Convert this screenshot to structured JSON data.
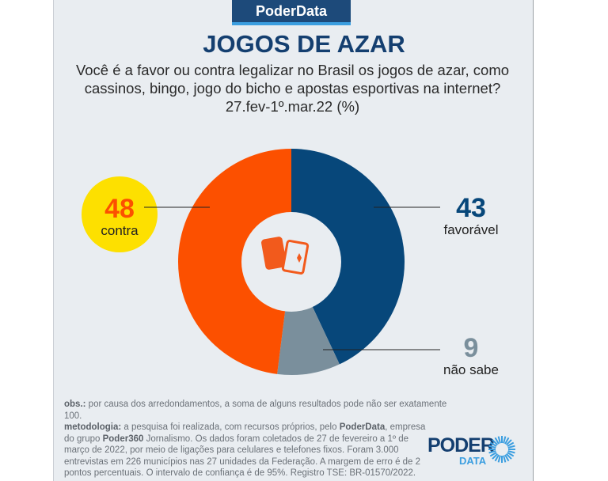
{
  "header": {
    "brand": "PoderData",
    "title": "JOGOS DE AZAR",
    "question_lines": [
      "Você é a favor ou contra legalizar no Brasil os jogos de azar, como",
      "cassinos, bingo, jogo do bicho e apostas esportivas na internet?",
      "27.fev-1º.mar.22 (%)"
    ]
  },
  "chart_data": {
    "type": "pie",
    "subtype": "donut",
    "title": "JOGOS DE AZAR",
    "slices": [
      {
        "label": "favorável",
        "value": 43,
        "color": "#07477a"
      },
      {
        "label": "não sabe",
        "value": 9,
        "color": "#7a8f9c"
      },
      {
        "label": "contra",
        "value": 48,
        "color": "#fc5000"
      }
    ],
    "center_icon": "playing-cards-icon",
    "highlight": {
      "label": "contra",
      "color": "#fde000"
    }
  },
  "footer": {
    "obs_label": "obs.:",
    "obs_text": " por causa dos arredondamentos, a soma de alguns resultados pode não ser exatamente 100.",
    "met_label": "metodologia:",
    "met_1": " a pesquisa foi realizada, com recursos próprios, pelo ",
    "met_brand": "PoderData",
    "met_2": ", empresa do grupo ",
    "met_group": "Poder360",
    "met_3": " Jornalismo. Os dados foram coletados de 27 de fevereiro a 1º de março de 2022, por meio de ligações para celulares e telefones fixos. Foram 3.000 entrevistas em 226 municípios nas 27 unidades da Federação. A margem de erro é de 2 pontos percentuais. O intervalo de confiança é de 95%. Registro TSE: BR-01570/2022.",
    "logo_top": "PODER",
    "logo_bottom": "DATA"
  }
}
